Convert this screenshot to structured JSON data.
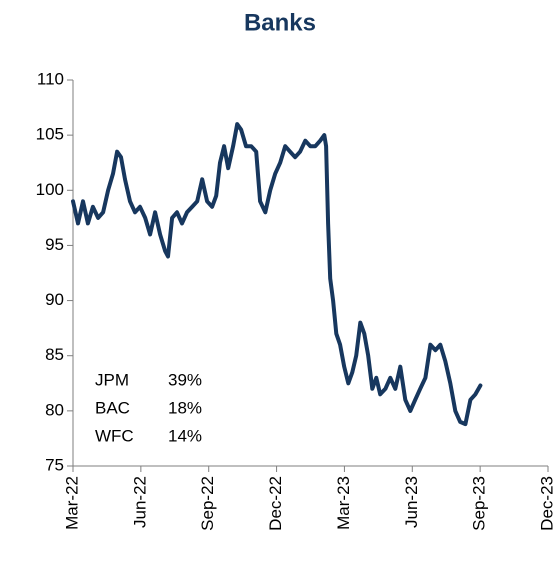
{
  "chart_data": {
    "type": "line",
    "title": "Banks",
    "x": [
      0,
      0.22,
      0.44,
      0.66,
      0.88,
      1.11,
      1.33,
      1.55,
      1.77,
      1.95,
      2.12,
      2.3,
      2.52,
      2.74,
      2.96,
      3.19,
      3.41,
      3.63,
      3.85,
      4.07,
      4.2,
      4.38,
      4.6,
      4.82,
      5.04,
      5.27,
      5.49,
      5.71,
      5.93,
      6.15,
      6.33,
      6.5,
      6.68,
      6.86,
      7.08,
      7.26,
      7.43,
      7.65,
      7.88,
      8.1,
      8.27,
      8.5,
      8.72,
      8.94,
      9.16,
      9.38,
      9.6,
      9.82,
      10.04,
      10.27,
      10.49,
      10.71,
      10.93,
      11.11,
      11.19,
      11.28,
      11.37,
      11.5,
      11.64,
      11.81,
      11.99,
      12.17,
      12.35,
      12.52,
      12.7,
      12.88,
      13.05,
      13.23,
      13.41,
      13.58,
      13.81,
      14.03,
      14.25,
      14.47,
      14.69,
      14.91,
      15.13,
      15.35,
      15.58,
      15.8,
      16.02,
      16.24,
      16.46,
      16.68,
      16.9,
      17.12,
      17.35,
      17.57,
      17.79,
      18.01
    ],
    "values": [
      99,
      97,
      99,
      97,
      98.5,
      97.5,
      98,
      100,
      101.5,
      103.5,
      103,
      101,
      99,
      98,
      98.5,
      97.5,
      96,
      98,
      96,
      94.5,
      94,
      97.5,
      98,
      97,
      98,
      98.5,
      99,
      101,
      99,
      98.5,
      99.5,
      102.5,
      104,
      102,
      104,
      106,
      105.5,
      104,
      104,
      103.5,
      99,
      98,
      100,
      101.5,
      102.5,
      104,
      103.5,
      103,
      103.5,
      104.5,
      104,
      104,
      104.5,
      105,
      104,
      97,
      92,
      90,
      87,
      86,
      84,
      82.5,
      83.5,
      85,
      88,
      87,
      85,
      82,
      83,
      81.5,
      82,
      83,
      82,
      84,
      81,
      80,
      81,
      82,
      83,
      86,
      85.5,
      86,
      84.5,
      82.5,
      80,
      79,
      78.8,
      81,
      81.5,
      82.3
    ],
    "color": "#17375e",
    "xlim": [
      0,
      21
    ],
    "xticks": [
      {
        "value": 0,
        "label": "Mar-22"
      },
      {
        "value": 3,
        "label": "Jun-22"
      },
      {
        "value": 6,
        "label": "Sep-22"
      },
      {
        "value": 9,
        "label": "Dec-22"
      },
      {
        "value": 12,
        "label": "Mar-23"
      },
      {
        "value": 15,
        "label": "Jun-23"
      },
      {
        "value": 18,
        "label": "Sep-23"
      },
      {
        "value": 21,
        "label": "Dec-23"
      }
    ],
    "ylim": [
      75,
      110
    ],
    "yticks": [
      75,
      80,
      85,
      90,
      95,
      100,
      105,
      110
    ],
    "grid": false,
    "annotation_table": {
      "names": [
        "JPM",
        "BAC",
        "WFC"
      ],
      "values": [
        39,
        18,
        14
      ],
      "value_labels": [
        "39%",
        "18%",
        "14%"
      ]
    }
  }
}
